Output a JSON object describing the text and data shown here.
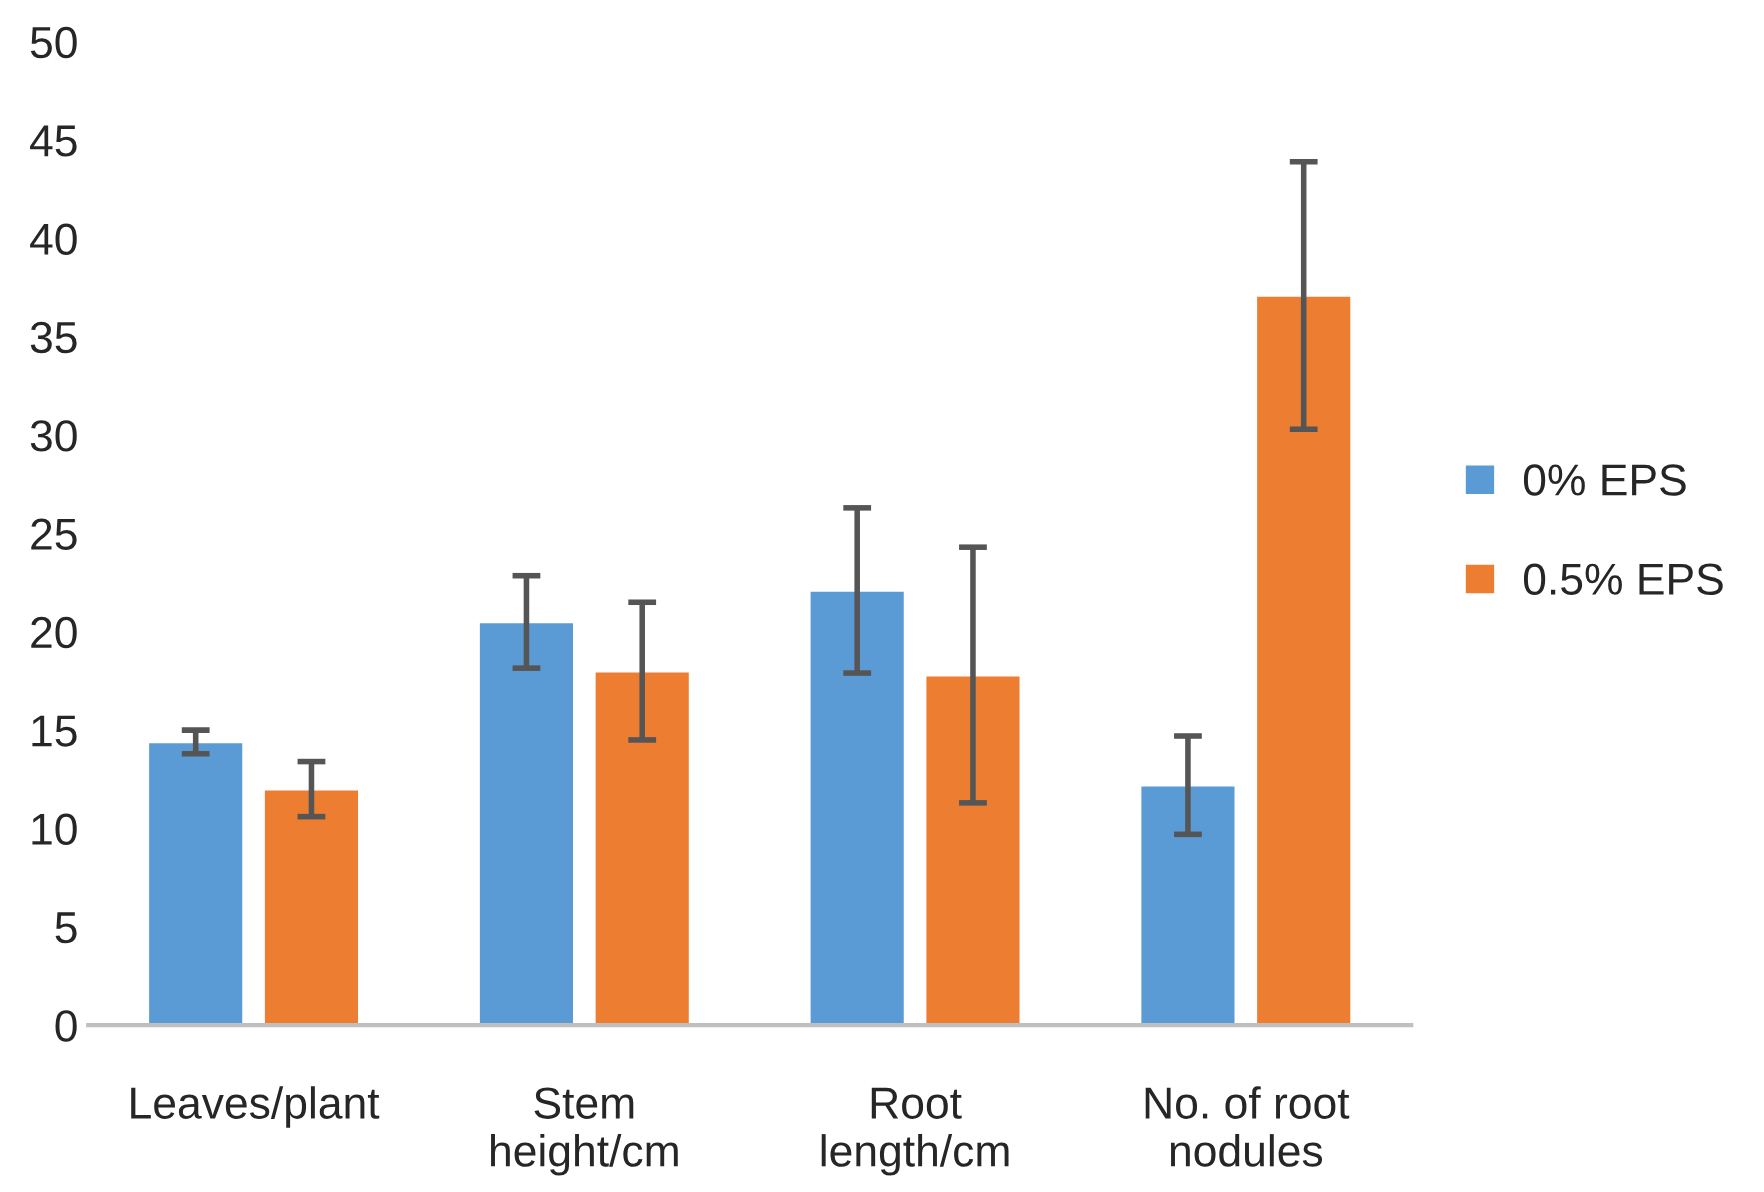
{
  "chart_data": {
    "type": "bar",
    "categories": [
      "Leaves/plant",
      "Stem\nheight/cm",
      "Root\nlength/cm",
      "No. of root\nnodules"
    ],
    "series": [
      {
        "name": "0% EPS",
        "color": "#5b9bd5",
        "values": [
          14.4,
          20.5,
          22.1,
          12.2
        ],
        "errors": [
          0.6,
          2.35,
          4.2,
          2.5
        ]
      },
      {
        "name": "0.5% EPS",
        "color": "#ed7d31",
        "values": [
          12.0,
          18.0,
          17.8,
          37.1
        ],
        "errors": [
          1.4,
          3.5,
          6.5,
          6.8
        ]
      }
    ],
    "ylim": [
      0,
      50
    ],
    "yticks": [
      0,
      5,
      10,
      15,
      20,
      25,
      30,
      35,
      40,
      45,
      50
    ],
    "grid": false,
    "legend": "right"
  }
}
